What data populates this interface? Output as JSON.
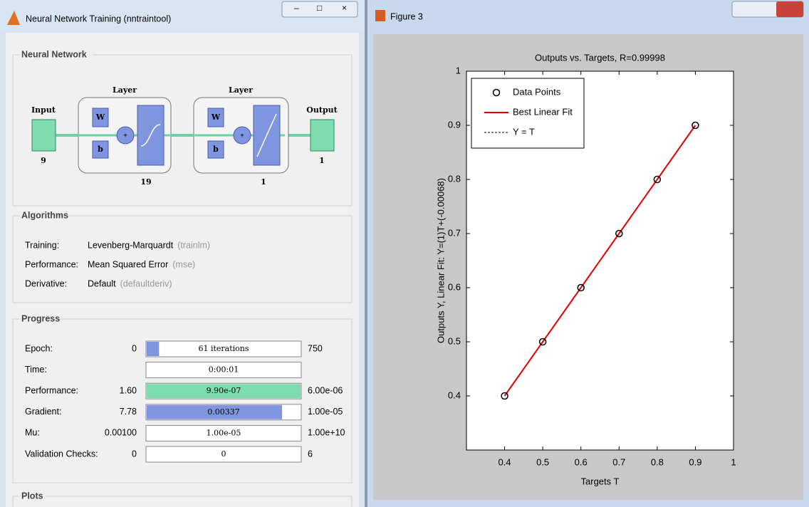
{
  "left_window": {
    "title": "Neural Network Training (nntraintool)"
  },
  "network": {
    "panel_title": "Neural Network",
    "input_label": "Input",
    "input_size": 9,
    "output_label": "Output",
    "output_size": 1,
    "layers": [
      {
        "label": "Layer",
        "size": 19,
        "w": "W",
        "b": "b"
      },
      {
        "label": "Layer",
        "size": 1,
        "w": "W",
        "b": "b"
      }
    ]
  },
  "algorithms": {
    "panel_title": "Algorithms",
    "rows": [
      [
        "Training:",
        "Levenberg-Marquardt",
        "(trainlm)"
      ],
      [
        "Performance:",
        "Mean Squared Error",
        "(mse)"
      ],
      [
        "Derivative:",
        "Default",
        "(defaultderiv)"
      ]
    ]
  },
  "progress": {
    "panel_title": "Progress",
    "rows": [
      {
        "label": "Epoch:",
        "start": "0",
        "value": "61 iterations",
        "end": "750",
        "fill": 0.08,
        "color": "#7f95e0"
      },
      {
        "label": "Time:",
        "value": "0:00:01"
      },
      {
        "label": "Performance:",
        "start": "1.60",
        "value": "9.90e-07",
        "end": "6.00e-06",
        "fill": 1,
        "color": "#7fdcaf"
      },
      {
        "label": "Gradient:",
        "start": "7.78",
        "value": "0.00337",
        "end": "1.00e-05",
        "fill": 0.88,
        "color": "#7f95e0"
      },
      {
        "label": "Mu:",
        "start": "0.00100",
        "value": "1.00e-05",
        "end": "1.00e+10"
      },
      {
        "label": "Validation Checks:",
        "start": "0",
        "value": "0",
        "end": "6"
      }
    ]
  },
  "plots": {
    "panel_title": "Plots"
  },
  "right_window": {
    "title": "Figure 3"
  },
  "chart_data": {
    "type": "scatter",
    "title": "Outputs vs. Targets, R=0.99998",
    "x_label": "Targets T",
    "y_label": "Outputs Y,  Linear Fit:  Y=(1)T+(-0.00068)",
    "x": [
      0.4,
      0.5,
      0.6,
      0.7,
      0.8,
      0.9
    ],
    "series": [
      {
        "name": "Data Points",
        "color": "#000000",
        "style": "marker",
        "values": [
          0.4,
          0.5,
          0.6,
          0.7,
          0.8,
          0.9
        ]
      },
      {
        "name": "Best Linear Fit",
        "color": "#e00000",
        "style": "line",
        "values": [
          0.4,
          0.5,
          0.6,
          0.7,
          0.8,
          0.9
        ]
      },
      {
        "name": "Y = T",
        "color": "#000000",
        "style": "dashed",
        "values": [
          0.4,
          0.5,
          0.6,
          0.7,
          0.8,
          0.9
        ]
      }
    ],
    "xlim": [
      0.3,
      1
    ],
    "ylim": [
      0.3,
      1
    ],
    "xticks": [
      0.4,
      0.5,
      0.6,
      0.7,
      0.8,
      0.9,
      1
    ],
    "yticks": [
      0.4,
      0.5,
      0.6,
      0.7,
      0.8,
      0.9,
      1
    ],
    "legend": "upper left"
  }
}
